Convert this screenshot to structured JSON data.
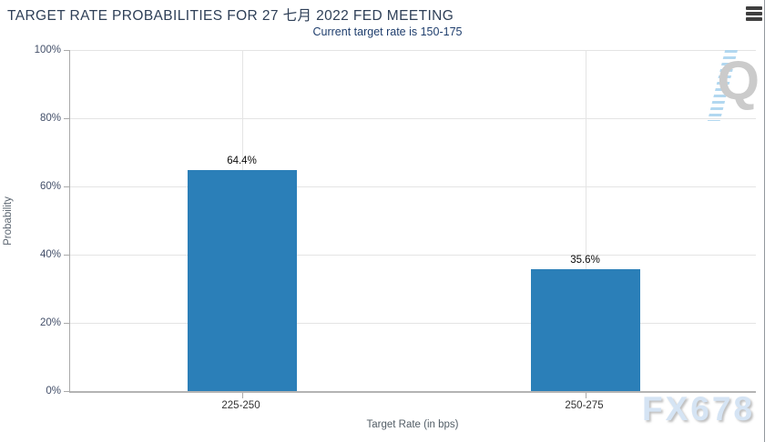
{
  "header": {
    "title": "TARGET RATE PROBABILITIES FOR 27 七月 2022 FED MEETING",
    "subtitle": "Current target rate is 150-175",
    "menu_icon": "hamburger-menu-icon"
  },
  "chart_data": {
    "type": "bar",
    "title": "TARGET RATE PROBABILITIES FOR 27 七月 2022 FED MEETING",
    "subtitle": "Current target rate is 150-175",
    "categories": [
      "225-250",
      "250-275"
    ],
    "values": [
      64.4,
      35.6
    ],
    "value_labels": [
      "64.4%",
      "35.6%"
    ],
    "xlabel": "Target Rate (in bps)",
    "ylabel": "Probability",
    "ylim": [
      0,
      100
    ],
    "ytick_step": 20,
    "yticks": [
      "100%",
      "80%",
      "60%",
      "40%",
      "20%",
      "0%"
    ],
    "grid": true,
    "legend": "none",
    "bar_color": "#2b7fb8"
  },
  "watermarks": {
    "logo_letter": "Q",
    "brand": "FX678"
  },
  "colors": {
    "bar": "#2b7fb8",
    "title_text": "#2e3f57",
    "subtitle_text": "#1f3e6d",
    "gridline": "#e4e4e4",
    "axis_line": "#b4b4b4",
    "watermark_gray": "#cbcbcb",
    "watermark_blue": "#d5e4f4"
  }
}
